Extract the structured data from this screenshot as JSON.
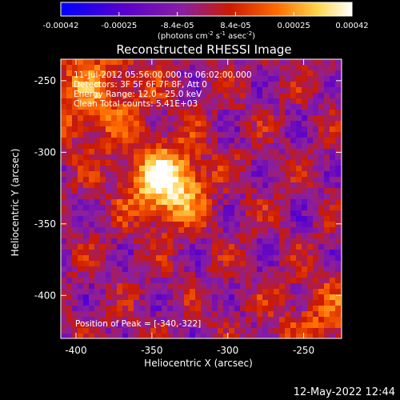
{
  "colorbar": {
    "ticks": [
      "-0.00042",
      "-0.00025",
      "-8.4e-05",
      "8.4e-05",
      "0.00025",
      "0.00042"
    ],
    "units_main": "(photons cm",
    "units_sup1": "-2",
    "units_mid1": " s",
    "units_sup2": "-1",
    "units_mid2": " asec",
    "units_sup3": "-2",
    "units_end": ")"
  },
  "title": "Reconstructed RHESSI Image",
  "info": {
    "line1": "11-Jul-2012 05:56:00.000 to 06:02:00.000",
    "line2": "Detectors: 3F 5F 6F 7F 8F, Att 0",
    "line3": "Energy Range: 12.0 - 25.0 keV",
    "line4": "Clean    Total counts: 5.41E+03",
    "peak": "Position of Peak = [-340,-322]"
  },
  "axes": {
    "xlabel": "Heliocentric X (arcsec)",
    "ylabel": "Heliocentric Y (arcsec)",
    "xticks": [
      {
        "v": -400,
        "label": "-400"
      },
      {
        "v": -350,
        "label": "-350"
      },
      {
        "v": -300,
        "label": "-300"
      },
      {
        "v": -250,
        "label": "-250"
      }
    ],
    "yticks": [
      {
        "v": -250,
        "label": "-250"
      },
      {
        "v": -300,
        "label": "-300"
      },
      {
        "v": -350,
        "label": "-350"
      },
      {
        "v": -400,
        "label": "-400"
      }
    ],
    "xlim": [
      -410,
      -225
    ],
    "ylim": [
      -430,
      -235
    ]
  },
  "image": {
    "peak": {
      "x": -340,
      "y": -322
    },
    "colormap_stops": [
      "#0000ff",
      "#5a00cc",
      "#8a1fa0",
      "#cc1a00",
      "#ff6a00",
      "#ffd54a",
      "#ffffff"
    ]
  },
  "footer": {
    "timestamp": "12-May-2022 12:44"
  }
}
